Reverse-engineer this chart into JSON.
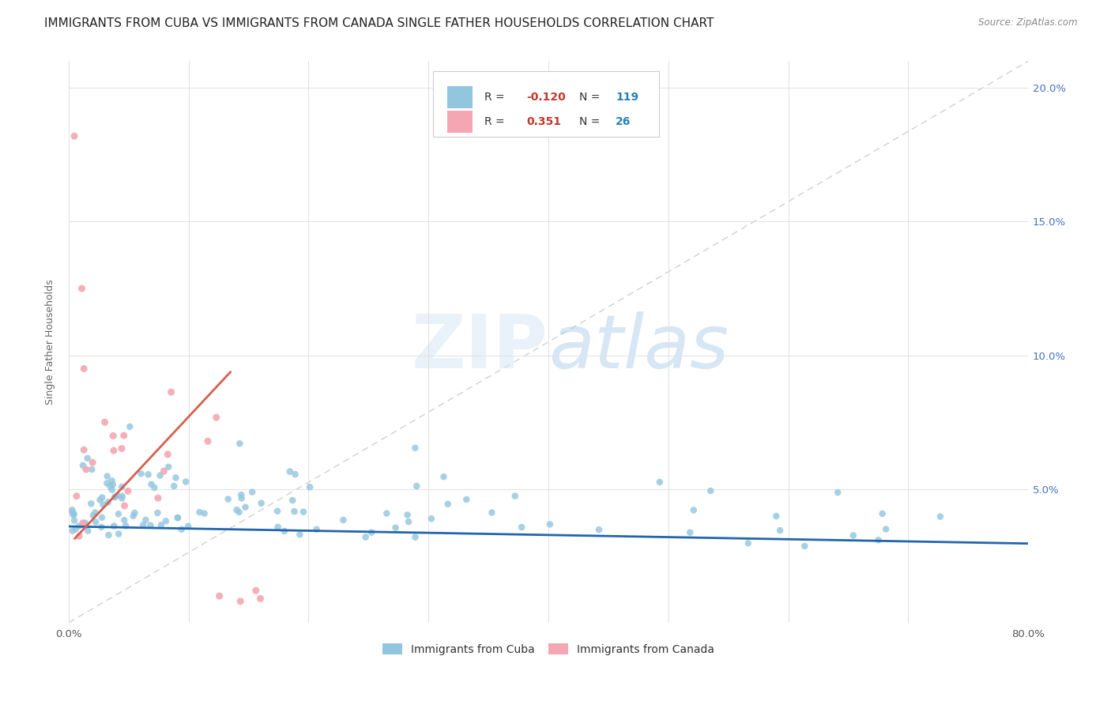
{
  "title": "IMMIGRANTS FROM CUBA VS IMMIGRANTS FROM CANADA SINGLE FATHER HOUSEHOLDS CORRELATION CHART",
  "source_text": "Source: ZipAtlas.com",
  "ylabel": "Single Father Households",
  "xlim": [
    0.0,
    0.8
  ],
  "ylim": [
    0.0,
    0.21
  ],
  "xticks": [
    0.0,
    0.1,
    0.2,
    0.3,
    0.4,
    0.5,
    0.6,
    0.7,
    0.8
  ],
  "xticklabels_sparse": [
    "0.0%",
    "",
    "",
    "",
    "",
    "",
    "",
    "",
    "80.0%"
  ],
  "yticks": [
    0.0,
    0.05,
    0.1,
    0.15,
    0.2
  ],
  "yticklabels": [
    "",
    "5.0%",
    "10.0%",
    "15.0%",
    "20.0%"
  ],
  "cuba_color": "#92c5de",
  "canada_color": "#f4a7b2",
  "cuba_line_color": "#2166ac",
  "canada_line_color": "#d6604d",
  "cuba_R": -0.12,
  "cuba_N": 119,
  "canada_R": 0.351,
  "canada_N": 26,
  "background_color": "#ffffff",
  "grid_color": "#e0e0e0",
  "title_fontsize": 11,
  "label_fontsize": 9,
  "tick_fontsize": 9.5,
  "right_tick_color": "#4472c4",
  "watermark_color": "#d6e8f5",
  "legend_R_color": "#c0392b",
  "legend_N_color": "#2980b9"
}
